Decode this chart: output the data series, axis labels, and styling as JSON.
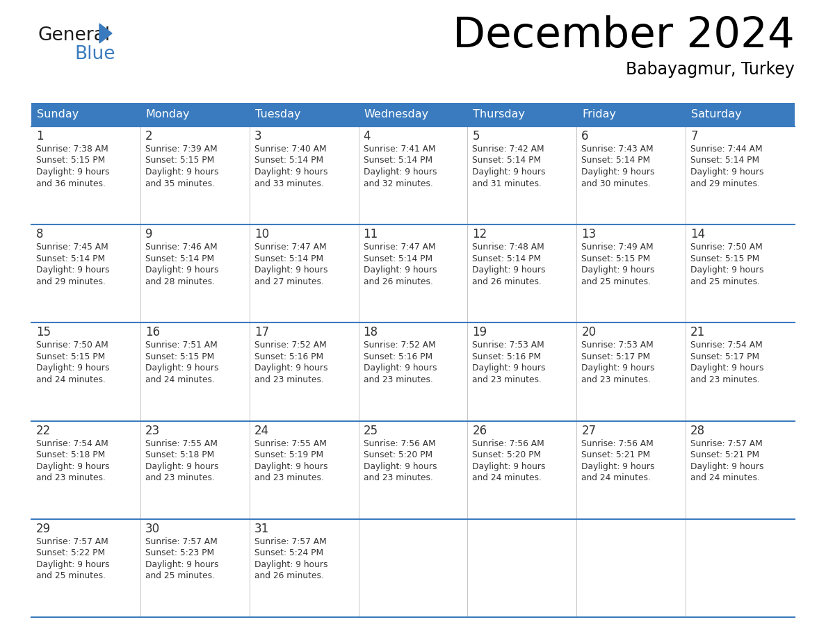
{
  "title": "December 2024",
  "subtitle": "Babayagmur, Turkey",
  "header_color": "#3a7bbf",
  "header_text_color": "#ffffff",
  "cell_bg_color": "#ffffff",
  "border_color": "#3a7bbf",
  "text_color": "#333333",
  "days_of_week": [
    "Sunday",
    "Monday",
    "Tuesday",
    "Wednesday",
    "Thursday",
    "Friday",
    "Saturday"
  ],
  "calendar_data": [
    [
      {
        "day": 1,
        "sunrise": "7:38 AM",
        "sunset": "5:15 PM",
        "daylight": "9 hours",
        "daylight2": "and 36 minutes."
      },
      {
        "day": 2,
        "sunrise": "7:39 AM",
        "sunset": "5:15 PM",
        "daylight": "9 hours",
        "daylight2": "and 35 minutes."
      },
      {
        "day": 3,
        "sunrise": "7:40 AM",
        "sunset": "5:14 PM",
        "daylight": "9 hours",
        "daylight2": "and 33 minutes."
      },
      {
        "day": 4,
        "sunrise": "7:41 AM",
        "sunset": "5:14 PM",
        "daylight": "9 hours",
        "daylight2": "and 32 minutes."
      },
      {
        "day": 5,
        "sunrise": "7:42 AM",
        "sunset": "5:14 PM",
        "daylight": "9 hours",
        "daylight2": "and 31 minutes."
      },
      {
        "day": 6,
        "sunrise": "7:43 AM",
        "sunset": "5:14 PM",
        "daylight": "9 hours",
        "daylight2": "and 30 minutes."
      },
      {
        "day": 7,
        "sunrise": "7:44 AM",
        "sunset": "5:14 PM",
        "daylight": "9 hours",
        "daylight2": "and 29 minutes."
      }
    ],
    [
      {
        "day": 8,
        "sunrise": "7:45 AM",
        "sunset": "5:14 PM",
        "daylight": "9 hours",
        "daylight2": "and 29 minutes."
      },
      {
        "day": 9,
        "sunrise": "7:46 AM",
        "sunset": "5:14 PM",
        "daylight": "9 hours",
        "daylight2": "and 28 minutes."
      },
      {
        "day": 10,
        "sunrise": "7:47 AM",
        "sunset": "5:14 PM",
        "daylight": "9 hours",
        "daylight2": "and 27 minutes."
      },
      {
        "day": 11,
        "sunrise": "7:47 AM",
        "sunset": "5:14 PM",
        "daylight": "9 hours",
        "daylight2": "and 26 minutes."
      },
      {
        "day": 12,
        "sunrise": "7:48 AM",
        "sunset": "5:14 PM",
        "daylight": "9 hours",
        "daylight2": "and 26 minutes."
      },
      {
        "day": 13,
        "sunrise": "7:49 AM",
        "sunset": "5:15 PM",
        "daylight": "9 hours",
        "daylight2": "and 25 minutes."
      },
      {
        "day": 14,
        "sunrise": "7:50 AM",
        "sunset": "5:15 PM",
        "daylight": "9 hours",
        "daylight2": "and 25 minutes."
      }
    ],
    [
      {
        "day": 15,
        "sunrise": "7:50 AM",
        "sunset": "5:15 PM",
        "daylight": "9 hours",
        "daylight2": "and 24 minutes."
      },
      {
        "day": 16,
        "sunrise": "7:51 AM",
        "sunset": "5:15 PM",
        "daylight": "9 hours",
        "daylight2": "and 24 minutes."
      },
      {
        "day": 17,
        "sunrise": "7:52 AM",
        "sunset": "5:16 PM",
        "daylight": "9 hours",
        "daylight2": "and 23 minutes."
      },
      {
        "day": 18,
        "sunrise": "7:52 AM",
        "sunset": "5:16 PM",
        "daylight": "9 hours",
        "daylight2": "and 23 minutes."
      },
      {
        "day": 19,
        "sunrise": "7:53 AM",
        "sunset": "5:16 PM",
        "daylight": "9 hours",
        "daylight2": "and 23 minutes."
      },
      {
        "day": 20,
        "sunrise": "7:53 AM",
        "sunset": "5:17 PM",
        "daylight": "9 hours",
        "daylight2": "and 23 minutes."
      },
      {
        "day": 21,
        "sunrise": "7:54 AM",
        "sunset": "5:17 PM",
        "daylight": "9 hours",
        "daylight2": "and 23 minutes."
      }
    ],
    [
      {
        "day": 22,
        "sunrise": "7:54 AM",
        "sunset": "5:18 PM",
        "daylight": "9 hours",
        "daylight2": "and 23 minutes."
      },
      {
        "day": 23,
        "sunrise": "7:55 AM",
        "sunset": "5:18 PM",
        "daylight": "9 hours",
        "daylight2": "and 23 minutes."
      },
      {
        "day": 24,
        "sunrise": "7:55 AM",
        "sunset": "5:19 PM",
        "daylight": "9 hours",
        "daylight2": "and 23 minutes."
      },
      {
        "day": 25,
        "sunrise": "7:56 AM",
        "sunset": "5:20 PM",
        "daylight": "9 hours",
        "daylight2": "and 23 minutes."
      },
      {
        "day": 26,
        "sunrise": "7:56 AM",
        "sunset": "5:20 PM",
        "daylight": "9 hours",
        "daylight2": "and 24 minutes."
      },
      {
        "day": 27,
        "sunrise": "7:56 AM",
        "sunset": "5:21 PM",
        "daylight": "9 hours",
        "daylight2": "and 24 minutes."
      },
      {
        "day": 28,
        "sunrise": "7:57 AM",
        "sunset": "5:21 PM",
        "daylight": "9 hours",
        "daylight2": "and 24 minutes."
      }
    ],
    [
      {
        "day": 29,
        "sunrise": "7:57 AM",
        "sunset": "5:22 PM",
        "daylight": "9 hours",
        "daylight2": "and 25 minutes."
      },
      {
        "day": 30,
        "sunrise": "7:57 AM",
        "sunset": "5:23 PM",
        "daylight": "9 hours",
        "daylight2": "and 25 minutes."
      },
      {
        "day": 31,
        "sunrise": "7:57 AM",
        "sunset": "5:24 PM",
        "daylight": "9 hours",
        "daylight2": "and 26 minutes."
      },
      null,
      null,
      null,
      null
    ]
  ],
  "logo_text1": "General",
  "logo_text2": "Blue",
  "logo_color1": "#1a1a1a",
  "logo_color2": "#3a7bbf",
  "logo_triangle_color": "#3a7bbf"
}
